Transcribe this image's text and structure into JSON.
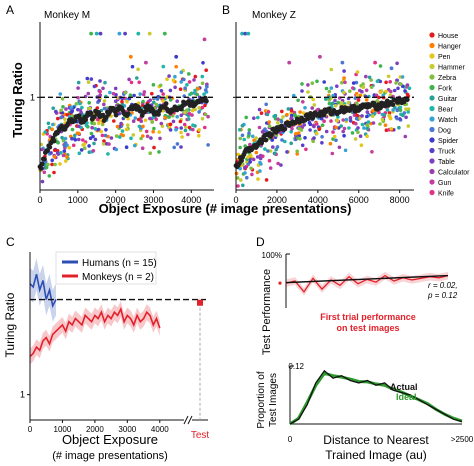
{
  "panel_labels": {
    "a": "A",
    "b": "B",
    "c": "C",
    "d": "D"
  },
  "colors": {
    "house": "#e41a1c",
    "hanger": "#ff7f00",
    "pen": "#e6c619",
    "hammer": "#c9c930",
    "zebra": "#7fbf3f",
    "fork": "#3cb44b",
    "guitar": "#2aa198",
    "bear": "#1fb5a8",
    "watch": "#36a3d6",
    "dog": "#4a78d1",
    "spider": "#3b3bcc",
    "truck": "#5b3fc9",
    "table": "#7b3fbf",
    "calculator": "#9b3fb0",
    "gun": "#c03fa0",
    "knife": "#e0308a",
    "humans": "#2c4fb3",
    "monkeys": "#e3212b",
    "black": "#111111",
    "ideal": "#2e9a2e"
  },
  "chart_data": [
    {
      "id": "A",
      "type": "scatter",
      "title": "Monkey M",
      "xlabel": "",
      "ylabel": "Turing Ratio",
      "xlim": [
        0,
        4600
      ],
      "ylim": [
        0.2,
        1.65
      ],
      "xticks": [
        0,
        1000,
        2000,
        3000,
        4000
      ],
      "yticks": [
        1
      ],
      "reference_line": {
        "y": 1,
        "style": "dashed"
      },
      "mean_curve": [
        [
          0,
          0.38
        ],
        [
          100,
          0.47
        ],
        [
          200,
          0.55
        ],
        [
          300,
          0.6
        ],
        [
          400,
          0.66
        ],
        [
          500,
          0.7
        ],
        [
          600,
          0.75
        ],
        [
          700,
          0.72
        ],
        [
          800,
          0.8
        ],
        [
          900,
          0.78
        ],
        [
          1000,
          0.84
        ],
        [
          1100,
          0.8
        ],
        [
          1200,
          0.82
        ],
        [
          1300,
          0.86
        ],
        [
          1400,
          0.83
        ],
        [
          1500,
          0.88
        ],
        [
          1600,
          0.85
        ],
        [
          1700,
          0.82
        ],
        [
          1800,
          0.87
        ],
        [
          1900,
          0.9
        ],
        [
          2000,
          0.86
        ],
        [
          2100,
          0.92
        ],
        [
          2200,
          0.88
        ],
        [
          2300,
          0.84
        ],
        [
          2400,
          0.9
        ],
        [
          2500,
          0.93
        ],
        [
          2600,
          0.89
        ],
        [
          2700,
          0.86
        ],
        [
          2800,
          0.9
        ],
        [
          2900,
          0.92
        ],
        [
          3000,
          0.88
        ],
        [
          3100,
          0.85
        ],
        [
          3200,
          0.9
        ],
        [
          3300,
          0.94
        ],
        [
          3400,
          0.9
        ],
        [
          3500,
          0.87
        ],
        [
          3600,
          0.92
        ],
        [
          3700,
          0.9
        ],
        [
          3800,
          0.94
        ],
        [
          3900,
          0.96
        ],
        [
          4000,
          0.93
        ],
        [
          4100,
          0.95
        ],
        [
          4200,
          0.97
        ],
        [
          4300,
          0.98
        ],
        [
          4400,
          0.97
        ]
      ],
      "scatter_band": {
        "x_range": [
          0,
          4450
        ],
        "spread": 0.22
      },
      "outliers": [
        [
          1350,
          1.55
        ],
        [
          1500,
          1.55
        ],
        [
          1600,
          1.55
        ],
        [
          2100,
          1.55
        ],
        [
          2250,
          1.55
        ],
        [
          2600,
          1.55
        ],
        [
          2900,
          1.55
        ],
        [
          3300,
          1.55
        ],
        [
          2400,
          1.35
        ],
        [
          2800,
          1.3
        ],
        [
          3600,
          1.35
        ],
        [
          4350,
          1.5
        ]
      ]
    },
    {
      "id": "B",
      "type": "scatter",
      "title": "Monkey Z",
      "xlabel": "",
      "ylabel": "",
      "xlim": [
        0,
        8700
      ],
      "ylim": [
        0.2,
        1.65
      ],
      "xticks": [
        0,
        2000,
        4000,
        6000,
        8000
      ],
      "yticks": [
        1
      ],
      "reference_line": {
        "y": 1,
        "style": "dashed"
      },
      "mean_curve": [
        [
          0,
          0.4
        ],
        [
          300,
          0.48
        ],
        [
          600,
          0.55
        ],
        [
          900,
          0.58
        ],
        [
          1200,
          0.62
        ],
        [
          1500,
          0.66
        ],
        [
          1800,
          0.7
        ],
        [
          2100,
          0.72
        ],
        [
          2400,
          0.75
        ],
        [
          2700,
          0.78
        ],
        [
          3000,
          0.8
        ],
        [
          3300,
          0.82
        ],
        [
          3600,
          0.84
        ],
        [
          3900,
          0.85
        ],
        [
          4200,
          0.86
        ],
        [
          4500,
          0.88
        ],
        [
          4800,
          0.87
        ],
        [
          5100,
          0.89
        ],
        [
          5400,
          0.9
        ],
        [
          5700,
          0.9
        ],
        [
          6000,
          0.91
        ],
        [
          6300,
          0.92
        ],
        [
          6600,
          0.93
        ],
        [
          6900,
          0.92
        ],
        [
          7200,
          0.94
        ],
        [
          7500,
          0.95
        ],
        [
          7800,
          0.96
        ],
        [
          8100,
          0.97
        ],
        [
          8400,
          0.98
        ]
      ],
      "scatter_band": {
        "x_range": [
          0,
          8500
        ],
        "spread": 0.2
      },
      "outliers": [
        [
          300,
          1.55
        ],
        [
          450,
          1.55
        ],
        [
          600,
          1.55
        ],
        [
          2600,
          1.3
        ],
        [
          4100,
          1.35
        ],
        [
          5200,
          1.3
        ],
        [
          6800,
          1.3
        ],
        [
          7600,
          1.25
        ]
      ]
    },
    {
      "id": "C",
      "type": "line",
      "title": "",
      "xlabel": "Object Exposure",
      "xlabel_sub": "(# image presentations)",
      "ylabel": "Turing Ratio",
      "xlim": [
        0,
        4500
      ],
      "ylim": [
        0.92,
        1.45
      ],
      "xticks": [
        0,
        1000,
        2000,
        3000,
        4000
      ],
      "yticks": [
        1
      ],
      "test_label": "Test",
      "reference_line": {
        "y": 1.3,
        "style": "dashed"
      },
      "legend": {
        "placement": "top-left",
        "entries": [
          "Humans (n = 15)",
          "Monkeys (n = 2)"
        ]
      },
      "series": [
        {
          "name": "Humans (n = 15)",
          "color": "#2c4fb3",
          "x": [
            0,
            100,
            200,
            300,
            400,
            500,
            600,
            700,
            800
          ],
          "y": [
            1.35,
            1.34,
            1.38,
            1.33,
            1.36,
            1.3,
            1.33,
            1.28,
            1.3
          ],
          "err": 0.05
        },
        {
          "name": "Monkeys (n = 2)",
          "color": "#e3212b",
          "x": [
            0,
            100,
            200,
            300,
            400,
            500,
            600,
            700,
            800,
            900,
            1000,
            1100,
            1200,
            1300,
            1400,
            1500,
            1600,
            1700,
            1800,
            1900,
            2000,
            2100,
            2200,
            2300,
            2400,
            2500,
            2600,
            2700,
            2800,
            2900,
            3000,
            3100,
            3200,
            3300,
            3400,
            3500,
            3600,
            3700,
            3800,
            3900,
            4000
          ],
          "y": [
            1.12,
            1.13,
            1.15,
            1.14,
            1.17,
            1.18,
            1.16,
            1.19,
            1.2,
            1.21,
            1.22,
            1.2,
            1.23,
            1.22,
            1.24,
            1.23,
            1.22,
            1.25,
            1.24,
            1.23,
            1.25,
            1.24,
            1.26,
            1.23,
            1.25,
            1.24,
            1.26,
            1.25,
            1.27,
            1.23,
            1.25,
            1.24,
            1.22,
            1.25,
            1.23,
            1.24,
            1.26,
            1.25,
            1.22,
            1.24,
            1.21
          ],
          "err": 0.025
        }
      ],
      "test_point": {
        "value": 1.29,
        "color": "#e3212b"
      }
    },
    {
      "id": "D-top",
      "type": "line",
      "title": "",
      "xlabel": "",
      "ylabel": "Test Performance",
      "ytick_label": "100%",
      "ylim": [
        0,
        1
      ],
      "annotation_r": "r = 0.02,",
      "annotation_p": "p = 0.12",
      "caption_line1": "First trial performance",
      "caption_line2": "on test images",
      "series": [
        {
          "name": "first trial",
          "color": "#e3212b",
          "x": [
            0,
            1,
            2,
            3,
            4,
            5,
            6,
            7,
            8,
            9,
            10,
            11,
            12,
            13,
            14,
            15,
            16,
            17,
            18
          ],
          "y": [
            0.46,
            0.5,
            0.3,
            0.55,
            0.35,
            0.52,
            0.42,
            0.58,
            0.45,
            0.53,
            0.48,
            0.6,
            0.5,
            0.56,
            0.52,
            0.55,
            0.58,
            0.56,
            0.6
          ]
        },
        {
          "name": "fit",
          "color": "#111111",
          "x": [
            0,
            18
          ],
          "y": [
            0.47,
            0.6
          ]
        }
      ]
    },
    {
      "id": "D-bottom",
      "type": "line",
      "title": "",
      "xlabel": "Distance to Nearest",
      "xlabel_sub": "Trained Image (au)",
      "ylabel": "Proportion of",
      "ylabel_sub": "Test Images",
      "xtick_left": "0",
      "xtick_right": ">2500",
      "ytick_label": "0.12",
      "ylim": [
        0,
        0.12
      ],
      "legend_actual": "Actual",
      "legend_ideal": "Ideal",
      "series": [
        {
          "name": "Actual",
          "color": "#111111",
          "x": [
            0,
            1,
            2,
            3,
            4,
            5,
            6,
            7,
            8,
            9,
            10,
            11,
            12,
            13,
            14,
            15,
            16,
            17,
            18,
            19,
            20
          ],
          "y": [
            0.0,
            0.01,
            0.04,
            0.085,
            0.11,
            0.095,
            0.1,
            0.09,
            0.085,
            0.09,
            0.08,
            0.085,
            0.07,
            0.065,
            0.06,
            0.05,
            0.04,
            0.03,
            0.02,
            0.01,
            0.005
          ]
        },
        {
          "name": "Ideal",
          "color": "#2e9a2e",
          "x": [
            0,
            1,
            2,
            3,
            4,
            5,
            6,
            7,
            8,
            9,
            10,
            11,
            12,
            13,
            14,
            15,
            16,
            17,
            18,
            19,
            20
          ],
          "y": [
            0.0,
            0.012,
            0.045,
            0.08,
            0.105,
            0.1,
            0.097,
            0.093,
            0.088,
            0.087,
            0.083,
            0.08,
            0.072,
            0.066,
            0.058,
            0.05,
            0.042,
            0.03,
            0.02,
            0.012,
            0.006
          ]
        }
      ]
    }
  ],
  "shared_xlabel": "Object Exposure (# image presentations)",
  "legend_items": [
    {
      "label": "House",
      "color": "#e41a1c"
    },
    {
      "label": "Hanger",
      "color": "#ff7f00"
    },
    {
      "label": "Pen",
      "color": "#e6c619"
    },
    {
      "label": "Hammer",
      "color": "#c9c930"
    },
    {
      "label": "Zebra",
      "color": "#7fbf3f"
    },
    {
      "label": "Fork",
      "color": "#3cb44b"
    },
    {
      "label": "Guitar",
      "color": "#2aa198"
    },
    {
      "label": "Bear",
      "color": "#1fb5a8"
    },
    {
      "label": "Watch",
      "color": "#36a3d6"
    },
    {
      "label": "Dog",
      "color": "#4a78d1"
    },
    {
      "label": "Spider",
      "color": "#3b3bcc"
    },
    {
      "label": "Truck",
      "color": "#5b3fc9"
    },
    {
      "label": "Table",
      "color": "#7b3fbf"
    },
    {
      "label": "Calculator",
      "color": "#9b3fb0"
    },
    {
      "label": "Gun",
      "color": "#c03fa0"
    },
    {
      "label": "Knife",
      "color": "#e0308a"
    }
  ]
}
